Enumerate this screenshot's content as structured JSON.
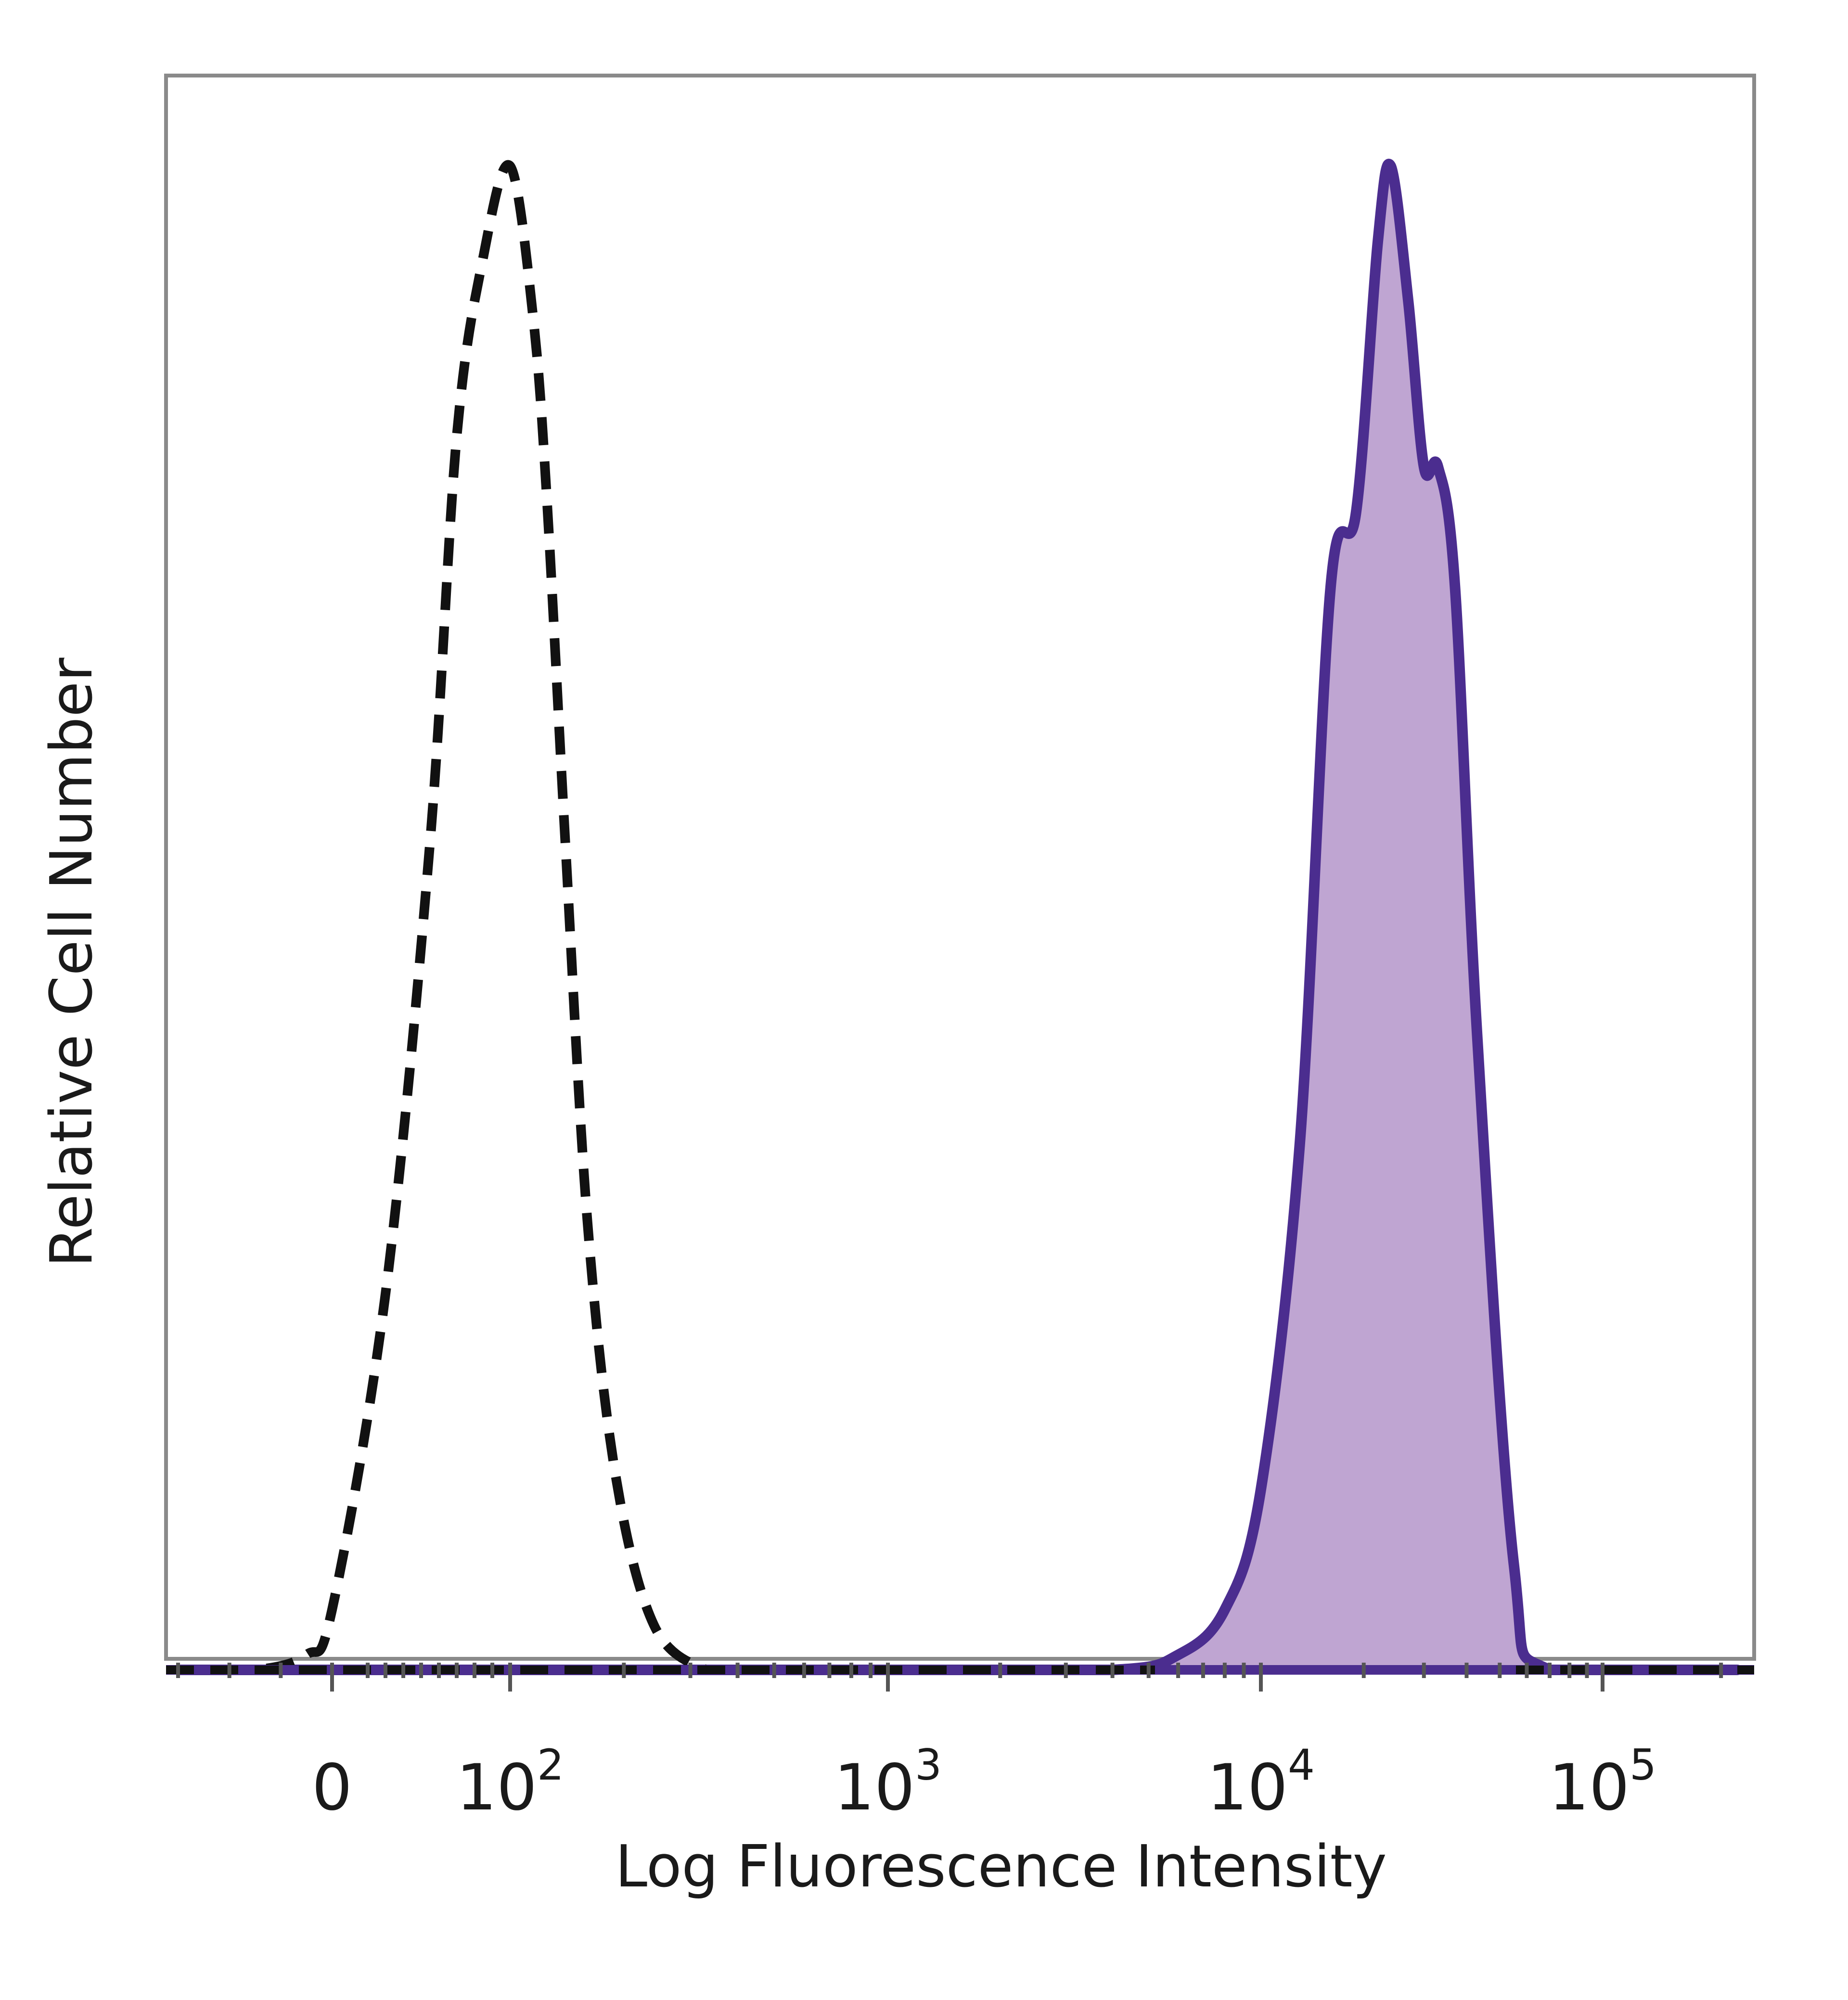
{
  "chart_data": {
    "type": "area",
    "xscale": "biexponential (logicle)",
    "xlabel": "Log Fluorescence Intensity",
    "ylabel": "Relative Cell Number",
    "ytick_labels": "none",
    "grid": false,
    "legend": "none",
    "x_ticks": [
      {
        "value": 0,
        "label": "0"
      },
      {
        "value": 100,
        "base": "10",
        "exp": "2"
      },
      {
        "value": 1000,
        "base": "10",
        "exp": "3"
      },
      {
        "value": 10000,
        "base": "10",
        "exp": "4"
      },
      {
        "value": 100000,
        "base": "10",
        "exp": "5"
      }
    ],
    "series": [
      {
        "style": "dashed",
        "color": "#111111",
        "fill": "none",
        "x": [
          -300,
          -150,
          -50,
          0,
          30,
          55,
          70,
          85,
          100,
          115,
          125,
          140,
          160,
          190,
          240,
          330,
          420,
          600,
          1000,
          3000,
          10000,
          30000,
          80000,
          220000
        ],
        "y": [
          0.0,
          0.0,
          0.01,
          0.04,
          0.25,
          0.55,
          0.82,
          0.94,
          1.0,
          0.9,
          0.78,
          0.55,
          0.3,
          0.13,
          0.03,
          0.0,
          0.0,
          0.0,
          0.0,
          0.0,
          0.0,
          0.0,
          0.0,
          0.0
        ]
      },
      {
        "style": "solid",
        "color": "#4b2d8f",
        "fill": "#bfa5d2",
        "x": [
          -300,
          0,
          1000,
          4000,
          6000,
          8000,
          10000,
          13000,
          16000,
          19000,
          22000,
          24000,
          27000,
          30000,
          33000,
          37000,
          43000,
          55000,
          70000,
          220000
        ],
        "y": [
          0.0,
          0.0,
          0.0,
          0.0,
          0.01,
          0.04,
          0.12,
          0.35,
          0.72,
          0.77,
          0.95,
          1.0,
          0.91,
          0.8,
          0.8,
          0.72,
          0.42,
          0.07,
          0.0,
          0.0
        ]
      }
    ]
  }
}
